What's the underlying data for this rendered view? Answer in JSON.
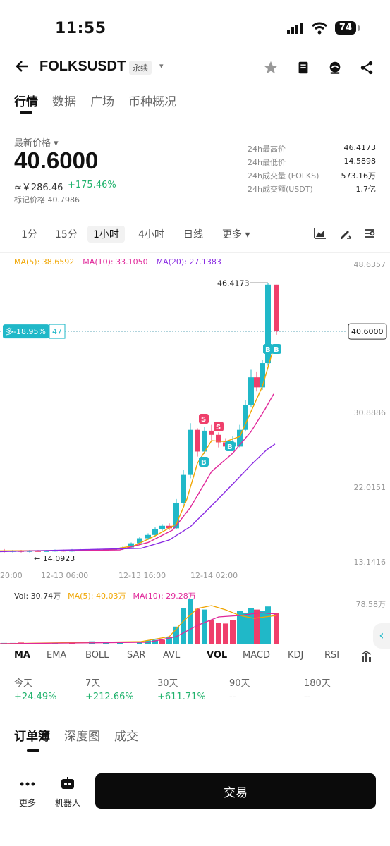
{
  "status": {
    "time": "11:55",
    "battery": "74"
  },
  "header": {
    "pair": "FOLKSUSDT",
    "badge": "永续",
    "caret": "▾"
  },
  "tabs": [
    "行情",
    "数据",
    "广场",
    "币种概况"
  ],
  "price": {
    "label": "最新价格 ▾",
    "last": "40.6000",
    "cny": "≈￥286.46",
    "change": "+175.46%",
    "mark": "标记价格 40.7986"
  },
  "stats": [
    {
      "k": "24h最高价",
      "v": "46.4173"
    },
    {
      "k": "24h最低价",
      "v": "14.5898"
    },
    {
      "k": "24h成交量 (FOLKS)",
      "v": "573.16万"
    },
    {
      "k": "24h成交额(USDT)",
      "v": "1.7亿"
    }
  ],
  "intervals": [
    "1分",
    "15分",
    "1小时",
    "4小时",
    "日线",
    "更多 ▾"
  ],
  "chart": {
    "ma5": "MA(5): 38.6592",
    "ma10": "MA(10): 33.1050",
    "ma20": "MA(20): 27.1383",
    "yaxis": [
      "48.6357",
      "30.8886",
      "22.0151",
      "13.1416"
    ],
    "high_label": "46.4173",
    "low_label": "14.0923",
    "last_tag": "40.6000",
    "position_tag": "多-18.95%",
    "position_qty": "47",
    "times": [
      "20:00",
      "12-13 06:00",
      "12-13 16:00",
      "12-14 02:00"
    ],
    "colors": {
      "up": "#20b8c8",
      "down": "#ef3f6b",
      "ma5": "#f0a500",
      "ma10": "#e0289a",
      "ma20": "#8a2be2"
    }
  },
  "volume": {
    "vol": "Vol: 30.74万",
    "ma5": "MA(5): 40.03万",
    "ma10": "MA(10): 29.28万",
    "axis_top": "78.58万"
  },
  "indicators": [
    "MA",
    "EMA",
    "BOLL",
    "SAR",
    "AVL",
    "VOL",
    "MACD",
    "KDJ",
    "RSI"
  ],
  "performance": [
    {
      "k": "今天",
      "v": "+24.49%"
    },
    {
      "k": "7天",
      "v": "+212.66%"
    },
    {
      "k": "30天",
      "v": "+611.71%"
    },
    {
      "k": "90天",
      "v": "--"
    },
    {
      "k": "180天",
      "v": "--"
    }
  ],
  "book_tabs": [
    "订单簿",
    "深度图",
    "成交"
  ],
  "bottom": {
    "more": "更多",
    "bot": "机器人",
    "trade": "交易"
  }
}
